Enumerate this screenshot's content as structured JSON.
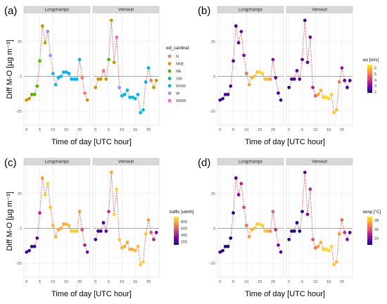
{
  "chart_data": [
    {
      "type": "scatter",
      "panel_label": "(a)",
      "facets": [
        "Longchamps",
        "Verneuil"
      ],
      "xlabel": "Time of day [UTC hour]",
      "ylabel": "Diff M-O [µg m⁻³]",
      "xlim": [
        -1,
        24
      ],
      "ylim": [
        -35,
        45
      ],
      "x_ticks": [
        0,
        5,
        10,
        15,
        20
      ],
      "y_ticks": [
        -25,
        0,
        25
      ],
      "color_by": "wd_cardinal",
      "legend": {
        "title": "wd_cardinal",
        "type": "categorical",
        "entries": [
          {
            "label": "N",
            "color": "#F8766D"
          },
          {
            "label": "NNE",
            "color": "#C49A00"
          },
          {
            "label": "NE",
            "color": "#53B400"
          },
          {
            "label": "SW",
            "color": "#00C094"
          },
          {
            "label": "WSW",
            "color": "#00B6EB"
          },
          {
            "label": "W",
            "color": "#A58AFF"
          },
          {
            "label": "WNW",
            "color": "#FB61D7"
          }
        ]
      }
    },
    {
      "type": "scatter",
      "panel_label": "(b)",
      "facets": [
        "Longchamps",
        "Verneuil"
      ],
      "xlabel": "Time of day [UTC hour]",
      "ylabel": "",
      "xlim": [
        -1,
        24
      ],
      "ylim": [
        -35,
        45
      ],
      "x_ticks": [
        0,
        5,
        10,
        15,
        20
      ],
      "y_ticks": [
        -25,
        0,
        25
      ],
      "color_by": "ws",
      "legend": {
        "title": "ws [m/s]",
        "type": "continuous",
        "ticks": [
          "6",
          "5",
          "4",
          "3",
          "2"
        ],
        "range": [
          1.8,
          6.5
        ],
        "gradient": [
          "#FDE725",
          "#F89540",
          "#CC4778",
          "#7E03A8",
          "#0D0887"
        ]
      }
    },
    {
      "type": "scatter",
      "panel_label": "(c)",
      "facets": [
        "Longchamps",
        "Verneuil"
      ],
      "xlabel": "Time of day [UTC hour]",
      "ylabel": "Diff M-O [µg m⁻³]",
      "xlim": [
        -1,
        24
      ],
      "ylim": [
        -35,
        45
      ],
      "x_ticks": [
        0,
        5,
        10,
        15,
        20
      ],
      "y_ticks": [
        -25,
        0,
        25
      ],
      "color_by": "traffic",
      "legend": {
        "title": "traffic [veh/h]",
        "type": "continuous",
        "ticks": [
          "800",
          "600",
          "400",
          "200"
        ],
        "range": [
          100,
          950
        ],
        "gradient": [
          "#FDE725",
          "#F89540",
          "#CC4778",
          "#7E03A8",
          "#0D0887"
        ]
      }
    },
    {
      "type": "scatter",
      "panel_label": "(d)",
      "facets": [
        "Longchamps",
        "Verneuil"
      ],
      "xlabel": "Time of day [UTC hour]",
      "ylabel": "",
      "xlim": [
        -1,
        24
      ],
      "ylim": [
        -35,
        45
      ],
      "x_ticks": [
        0,
        5,
        10,
        15,
        20
      ],
      "y_ticks": [
        -25,
        0,
        25
      ],
      "color_by": "temp",
      "legend": {
        "title": "temp [°C]",
        "type": "continuous",
        "ticks": [
          "28",
          "26",
          "24"
        ],
        "range": [
          22.5,
          28.8
        ],
        "gradient": [
          "#FDE725",
          "#F89540",
          "#CC4778",
          "#7E03A8",
          "#0D0887"
        ]
      }
    }
  ],
  "series": {
    "Longchamps": {
      "hours": [
        0,
        1,
        2,
        3,
        4,
        5,
        6,
        7,
        8,
        9,
        10,
        11,
        12,
        13,
        14,
        15,
        16,
        17,
        18,
        19,
        20,
        21,
        22,
        23
      ],
      "diff": [
        -17,
        -16,
        -13,
        -13,
        -7,
        11,
        36,
        24,
        32,
        15,
        2,
        -6,
        -1,
        0,
        3,
        3,
        2,
        -2,
        -2,
        -2,
        12,
        -1,
        -12,
        -17
      ],
      "wd_cardinal": [
        "NNE",
        "NNE",
        "NE",
        "NE",
        "NE",
        "NE",
        "NNE",
        "NNE",
        "W",
        "W",
        "WSW",
        "WSW",
        "WSW",
        "WSW",
        "WSW",
        "WSW",
        "WSW",
        "WSW",
        "WSW",
        "WSW",
        "WSW",
        "N",
        "N",
        "NNE"
      ],
      "ws": [
        2.2,
        2.3,
        2.4,
        2.4,
        2.5,
        2.6,
        2.4,
        2.6,
        2.8,
        3.0,
        4.8,
        5.5,
        5.8,
        6.0,
        6.1,
        6.2,
        6.2,
        6.0,
        5.9,
        5.5,
        3.2,
        2.6,
        2.5,
        2.3
      ],
      "traffic": [
        200,
        180,
        170,
        190,
        250,
        450,
        760,
        880,
        900,
        860,
        820,
        800,
        780,
        790,
        800,
        810,
        840,
        870,
        900,
        860,
        740,
        560,
        420,
        310
      ],
      "temp": [
        23.0,
        22.8,
        22.6,
        22.5,
        22.5,
        22.8,
        23.5,
        24.2,
        25.0,
        25.8,
        26.5,
        27.2,
        27.8,
        28.2,
        28.4,
        28.5,
        28.4,
        28.2,
        27.8,
        27.2,
        26.3,
        25.2,
        24.2,
        23.5
      ]
    },
    "Verneuil": {
      "hours": [
        0,
        1,
        2,
        3,
        4,
        5,
        6,
        7,
        8,
        9,
        10,
        11,
        12,
        13,
        14,
        15,
        16,
        17,
        18,
        19,
        20,
        21,
        22,
        23
      ],
      "diff": [
        -8,
        -2,
        -2,
        4,
        -2,
        12,
        40,
        10,
        28,
        -8,
        -14,
        -13,
        -10,
        -15,
        -15,
        -16,
        -13,
        -26,
        -24,
        -4,
        6,
        -3,
        -8,
        -3
      ],
      "wd_cardinal": [
        "NNE",
        "NNE",
        "NNE",
        "N",
        "NNE",
        "NE",
        "NNE",
        "NNE",
        "WNW",
        "W",
        "WSW",
        "WSW",
        "WSW",
        "WSW",
        "WSW",
        "WSW",
        "WSW",
        "WSW",
        "WSW",
        "WSW",
        "WSW",
        "N",
        "NNE",
        "NNE"
      ],
      "ws": [
        2.2,
        2.4,
        2.4,
        2.5,
        2.6,
        2.5,
        2.3,
        2.6,
        2.9,
        3.6,
        4.6,
        5.6,
        5.9,
        6.1,
        6.2,
        6.3,
        6.2,
        6.1,
        6.0,
        5.0,
        3.3,
        2.7,
        2.4,
        2.3
      ],
      "traffic": [
        210,
        190,
        180,
        200,
        260,
        470,
        780,
        890,
        910,
        870,
        830,
        810,
        790,
        800,
        800,
        820,
        850,
        880,
        900,
        870,
        760,
        580,
        430,
        320
      ],
      "temp": [
        23.1,
        22.9,
        22.7,
        22.6,
        22.6,
        22.9,
        23.6,
        24.3,
        25.1,
        25.9,
        26.6,
        27.3,
        27.9,
        28.3,
        28.5,
        28.6,
        28.5,
        28.3,
        27.9,
        27.3,
        26.4,
        25.3,
        24.3,
        23.6
      ]
    }
  }
}
